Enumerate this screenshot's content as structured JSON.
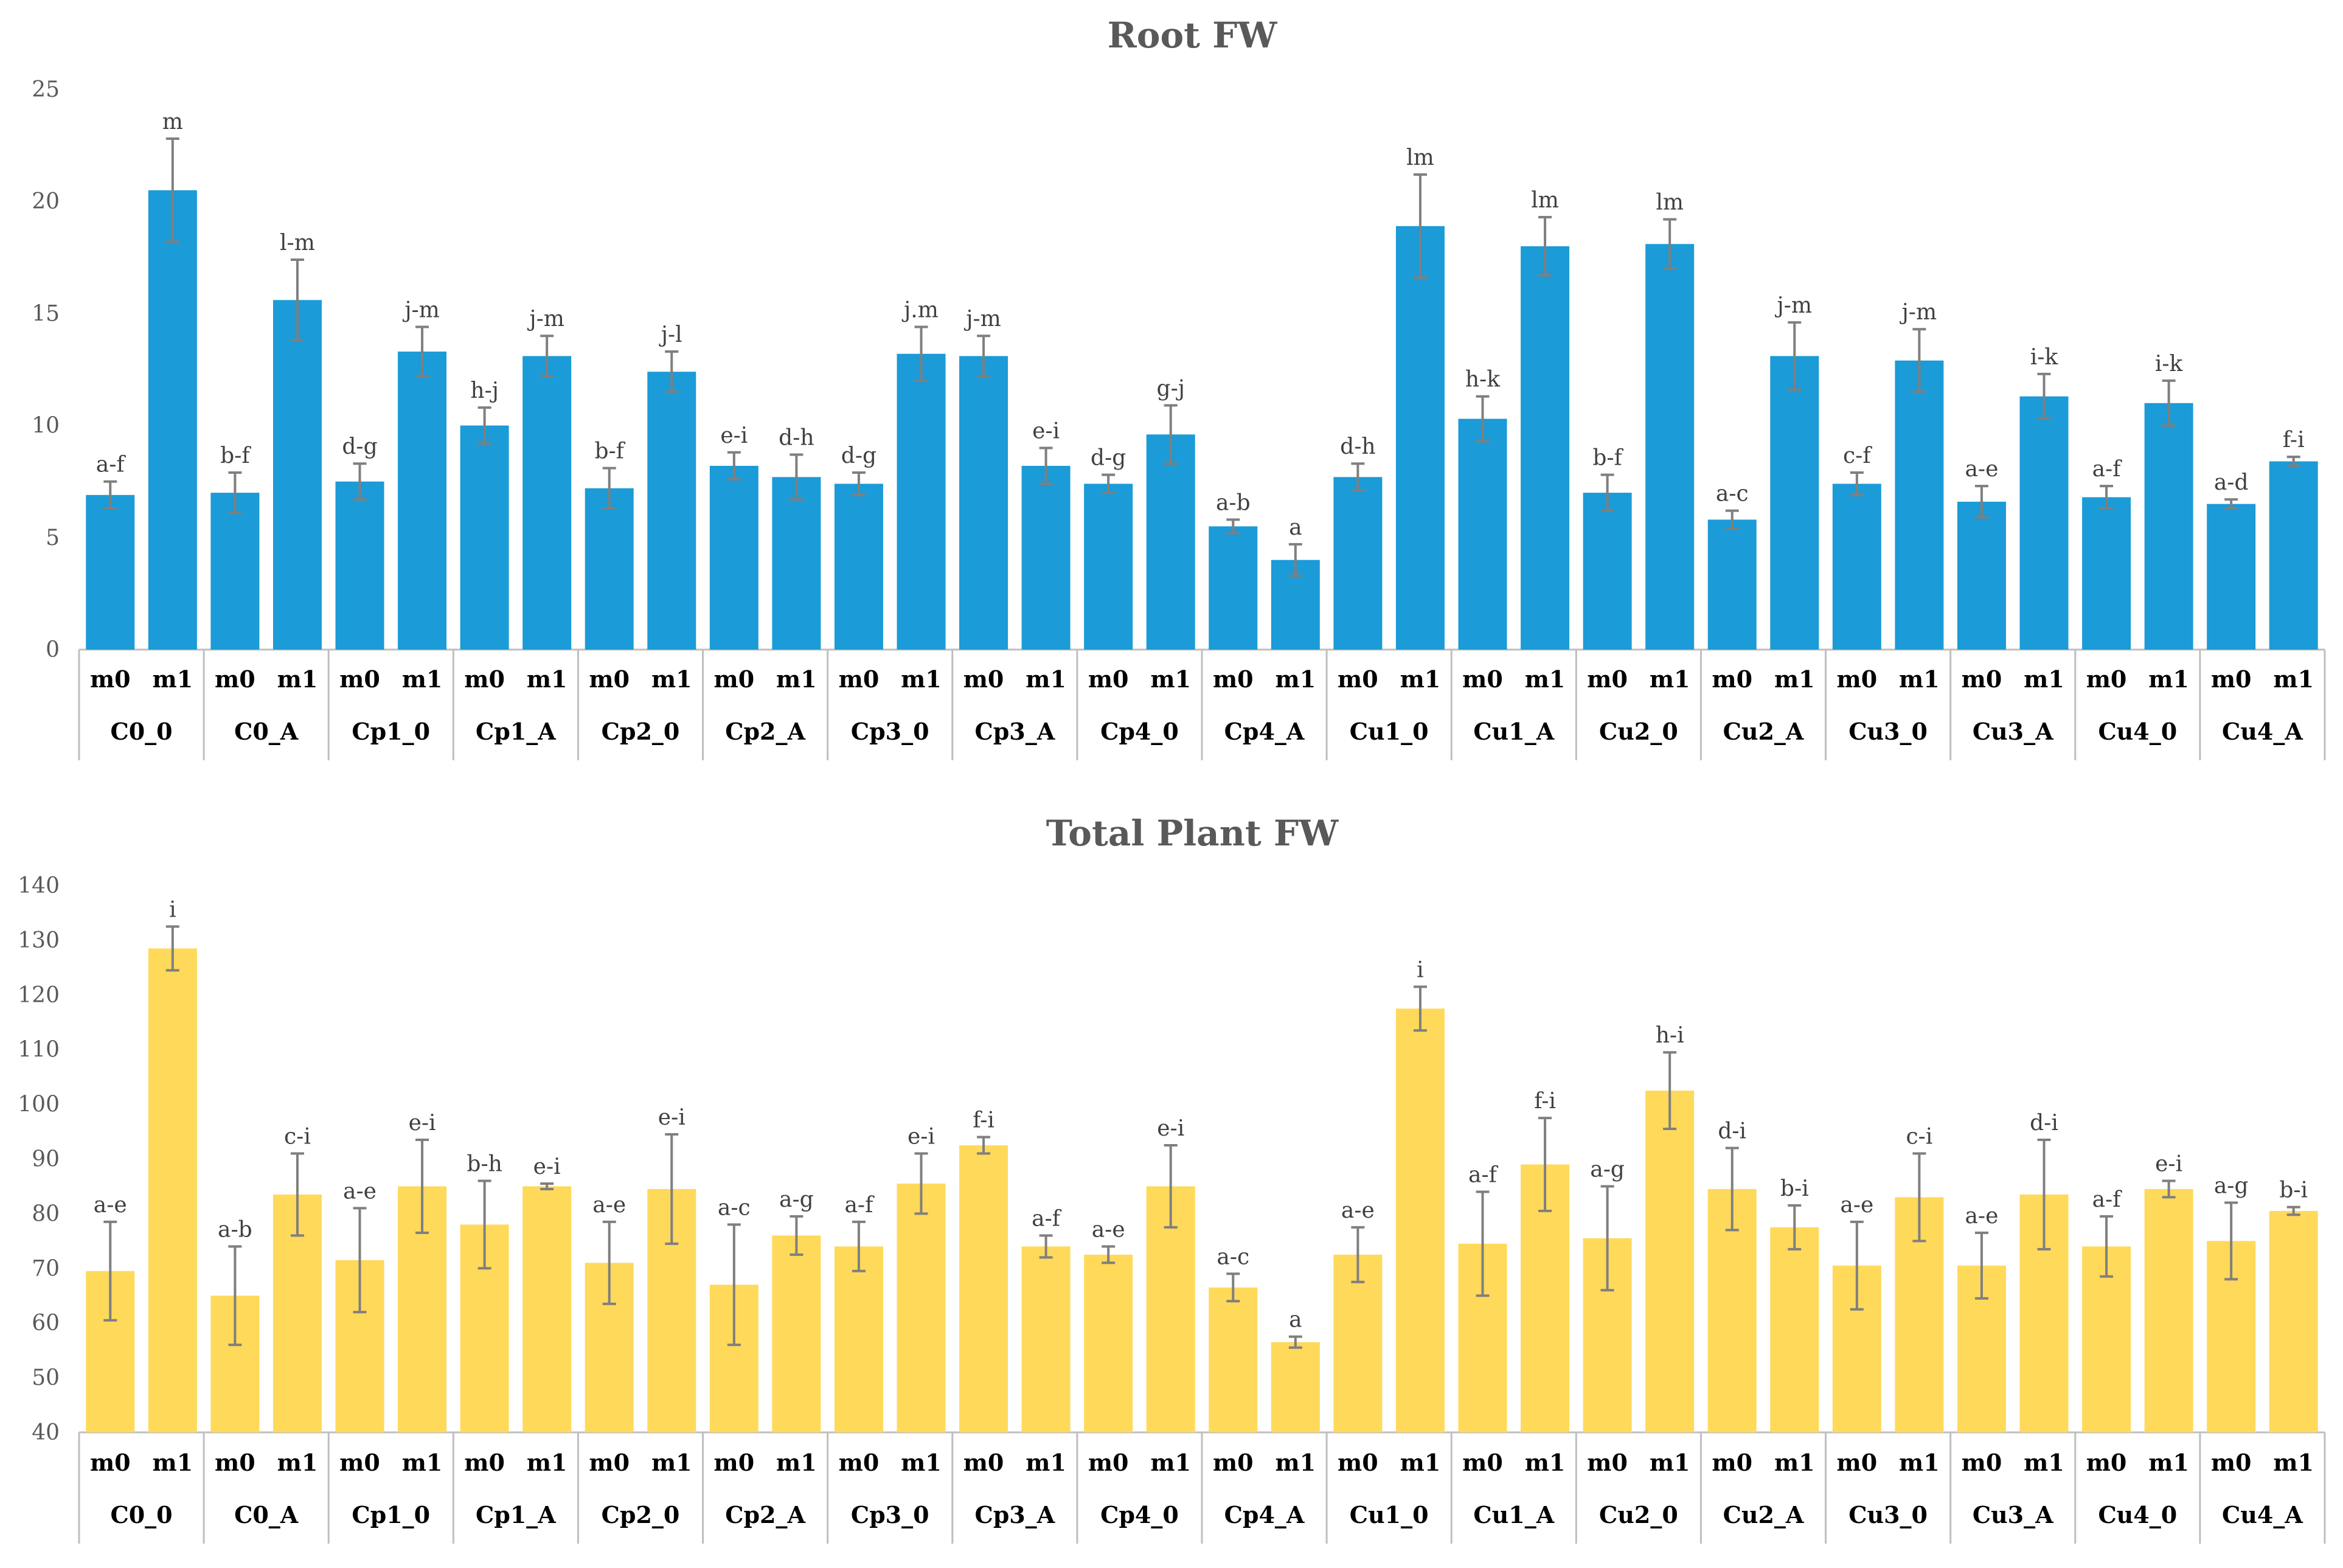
{
  "chart_data": [
    {
      "type": "bar",
      "title": "Root FW",
      "ylim": [
        0,
        25
      ],
      "yticks": [
        0,
        5,
        10,
        15,
        20,
        25
      ],
      "groups": [
        "C0_0",
        "C0_A",
        "Cp1_0",
        "Cp1_A",
        "Cp2_0",
        "Cp2_A",
        "Cp3_0",
        "Cp3_A",
        "Cp4_0",
        "Cp4_A",
        "Cu1_0",
        "Cu1_A",
        "Cu2_0",
        "Cu2_A",
        "Cu3_0",
        "Cu3_A",
        "Cu4_0",
        "Cu4_A"
      ],
      "subcategories": [
        "m0",
        "m1"
      ],
      "color": "#1B9BD7",
      "values": [
        6.9,
        20.5,
        7.0,
        15.6,
        7.5,
        13.3,
        10.0,
        13.1,
        7.2,
        12.4,
        8.2,
        7.7,
        7.4,
        13.2,
        13.1,
        8.2,
        7.4,
        9.6,
        5.5,
        4.0,
        7.7,
        18.9,
        10.3,
        18.0,
        7.0,
        18.1,
        5.8,
        13.1,
        7.4,
        12.9,
        6.6,
        11.3,
        6.8,
        11.0,
        6.5,
        8.4
      ],
      "errors": [
        0.6,
        2.3,
        0.9,
        1.8,
        0.8,
        1.1,
        0.8,
        0.9,
        0.9,
        0.9,
        0.6,
        1.0,
        0.5,
        1.2,
        0.9,
        0.8,
        0.4,
        1.3,
        0.3,
        0.7,
        0.6,
        2.3,
        1.0,
        1.3,
        0.8,
        1.1,
        0.4,
        1.5,
        0.5,
        1.4,
        0.7,
        1.0,
        0.5,
        1.0,
        0.2,
        0.2
      ],
      "letters": [
        "a-f",
        "m",
        "b-f",
        "l-m",
        "d-g",
        "j-m",
        "h-j",
        "j-m",
        "b-f",
        "j-l",
        "e-i",
        "d-h",
        "d-g",
        "j.m",
        "j-m",
        "e-i",
        "d-g",
        "g-j",
        "a-b",
        "a",
        "d-h",
        "lm",
        "h-k",
        "lm",
        "b-f",
        "lm",
        "a-c",
        "j-m",
        "c-f",
        "j-m",
        "a-e",
        "i-k",
        "a-f",
        "i-k",
        "a-d",
        "f-i"
      ]
    },
    {
      "type": "bar",
      "title": "Total Plant FW",
      "ylim": [
        40,
        140
      ],
      "yticks": [
        40,
        50,
        60,
        70,
        80,
        90,
        100,
        110,
        120,
        130,
        140
      ],
      "groups": [
        "C0_0",
        "C0_A",
        "Cp1_0",
        "Cp1_A",
        "Cp2_0",
        "Cp2_A",
        "Cp3_0",
        "Cp3_A",
        "Cp4_0",
        "Cp4_A",
        "Cu1_0",
        "Cu1_A",
        "Cu2_0",
        "Cu2_A",
        "Cu3_0",
        "Cu3_A",
        "Cu4_0",
        "Cu4_A"
      ],
      "subcategories": [
        "m0",
        "m1"
      ],
      "color": "#FFD95A",
      "values": [
        69.5,
        128.5,
        65.0,
        83.5,
        71.5,
        85.0,
        78.0,
        85.0,
        71.0,
        84.5,
        67.0,
        76.0,
        74.0,
        85.5,
        92.5,
        74.0,
        72.5,
        85.0,
        66.5,
        56.5,
        72.5,
        117.5,
        74.5,
        89.0,
        75.5,
        102.5,
        84.5,
        77.5,
        70.5,
        83.0,
        70.5,
        83.5,
        74.0,
        84.5,
        75.0,
        80.5
      ],
      "errors": [
        9.0,
        4.0,
        9.0,
        7.5,
        9.5,
        8.5,
        8.0,
        0.5,
        7.5,
        10.0,
        11.0,
        3.5,
        4.5,
        5.5,
        1.5,
        2.0,
        1.5,
        7.5,
        2.5,
        1.0,
        5.0,
        4.0,
        9.5,
        8.5,
        9.5,
        7.0,
        7.5,
        4.0,
        8.0,
        8.0,
        6.0,
        10.0,
        5.5,
        1.5,
        7.0,
        0.7
      ],
      "letters": [
        "a-e",
        "i",
        "a-b",
        "c-i",
        "a-e",
        "e-i",
        "b-h",
        "e-i",
        "a-e",
        "e-i",
        "a-c",
        "a-g",
        "a-f",
        "e-i",
        "f-i",
        "a-f",
        "a-e",
        "e-i",
        "a-c",
        "a",
        "a-e",
        "i",
        "a-f",
        "f-i",
        "a-g",
        "h-i",
        "d-i",
        "b-i",
        "a-e",
        "c-i",
        "a-e",
        "d-i",
        "a-f",
        "e-i",
        "a-g",
        "b-i"
      ]
    }
  ]
}
